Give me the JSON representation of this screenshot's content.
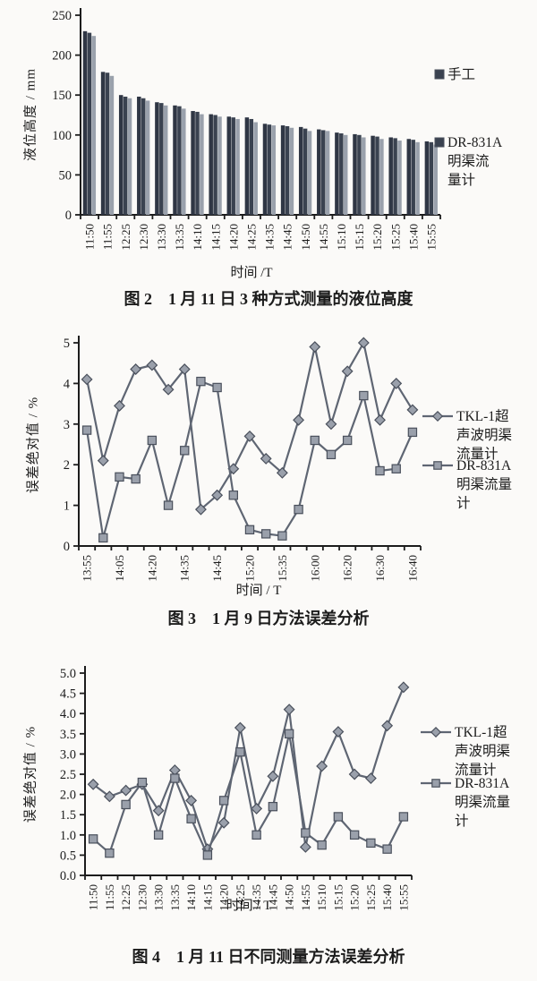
{
  "page": {
    "background": "#fbfaf8",
    "text_color": "#1c1c1c"
  },
  "chart_data": [
    {
      "type": "bar",
      "title": "图 2　1 月 11 日 3 种方式测量的液位高度",
      "xlabel": "时间 /T",
      "ylabel": "液位高度 / mm",
      "ylim": [
        0,
        250
      ],
      "yticks": [
        0,
        50,
        100,
        150,
        200,
        250
      ],
      "ytick_labels": [
        "0",
        "50",
        "100",
        "150",
        "200",
        "250"
      ],
      "grid": false,
      "legend_position": "right",
      "categories": [
        "11:50",
        "11:55",
        "12:25",
        "12:30",
        "13:30",
        "13:35",
        "14:10",
        "14:15",
        "14:20",
        "14:25",
        "14:35",
        "14:45",
        "14:50",
        "14:55",
        "15:10",
        "15:15",
        "15:20",
        "15:25",
        "15:40",
        "15:55"
      ],
      "series": [
        {
          "name": "手工",
          "color": "#2f3644",
          "values": [
            230,
            179,
            150,
            148,
            141,
            137,
            130,
            126,
            123,
            122,
            114,
            112,
            110,
            107,
            103,
            101,
            99,
            97,
            95,
            92
          ]
        },
        {
          "name": "",
          "color": "#3a4250",
          "values": [
            228,
            178,
            148,
            146,
            140,
            136,
            129,
            125,
            122,
            120,
            113,
            111,
            108,
            106,
            102,
            100,
            98,
            96,
            94,
            91
          ]
        },
        {
          "name": "DR-831A明渠流量计",
          "color": "#9aa1ac",
          "values": [
            224,
            174,
            146,
            143,
            137,
            133,
            126,
            123,
            120,
            116,
            112,
            109,
            105,
            105,
            100,
            97,
            95,
            93,
            91,
            88
          ]
        }
      ],
      "legend": [
        {
          "marker": "swatch",
          "color": "#3a4250",
          "lines": [
            "手工"
          ]
        },
        {
          "marker": "swatch",
          "color": "#3a4250",
          "lines": [
            "DR-831A",
            "明渠流",
            "量计"
          ]
        }
      ]
    },
    {
      "type": "line",
      "title": "图 3　1 月 9 日方法误差分析",
      "xlabel": "时间 / T",
      "ylabel": "误差绝对值 / %",
      "ylim": [
        0,
        5
      ],
      "yticks": [
        0,
        1,
        2,
        3,
        4,
        5
      ],
      "ytick_labels": [
        "0",
        "1",
        "2",
        "3",
        "4",
        "5"
      ],
      "grid": false,
      "legend_position": "right",
      "categories": [
        "13:55",
        "",
        "14:05",
        "",
        "14:20",
        "",
        "14:35",
        "",
        "14:45",
        "",
        "15:20",
        "",
        "15:35",
        "",
        "16:00",
        "",
        "16:20",
        "",
        "16:30",
        "",
        "16:40"
      ],
      "series": [
        {
          "name": "TKL-1超声波明渠流量计",
          "marker": "diamond",
          "color": "#5f6673",
          "values": [
            4.1,
            2.1,
            3.45,
            4.35,
            4.45,
            3.85,
            4.35,
            0.9,
            1.25,
            1.9,
            2.7,
            2.15,
            1.8,
            3.1,
            4.9,
            3.0,
            4.3,
            5.0,
            3.1,
            4.0,
            3.35
          ]
        },
        {
          "name": "DR-831A明渠流量计",
          "marker": "square",
          "color": "#5f6673",
          "values": [
            2.85,
            0.2,
            1.7,
            1.65,
            2.6,
            1.0,
            2.35,
            4.05,
            3.9,
            1.25,
            0.4,
            0.3,
            0.25,
            0.9,
            2.6,
            2.25,
            2.6,
            3.7,
            1.85,
            1.9,
            2.8
          ]
        }
      ],
      "legend": [
        {
          "marker": "diamond",
          "color": "#5f6673",
          "lines": [
            "TKL-1超",
            "声波明渠",
            "流量计"
          ]
        },
        {
          "marker": "square",
          "color": "#5f6673",
          "lines": [
            "DR-831A",
            "明渠流量",
            "计"
          ]
        }
      ]
    },
    {
      "type": "line",
      "title": "图 4　1 月 11 日不同测量方法误差分析",
      "xlabel": "时间 / T",
      "ylabel": "误差绝对值 / %",
      "ylim": [
        0,
        5
      ],
      "yticks": [
        0,
        0.5,
        1,
        1.5,
        2,
        2.5,
        3,
        3.5,
        4,
        4.5,
        5
      ],
      "ytick_labels": [
        "0.0",
        "0.5",
        "1.0",
        "1.5",
        "2.0",
        "2.5",
        "3.0",
        "3.5",
        "4.0",
        "4.5",
        "5.0"
      ],
      "grid": false,
      "legend_position": "right",
      "categories": [
        "11:50",
        "11:55",
        "12:25",
        "12:30",
        "13:30",
        "13:35",
        "14:10",
        "14:15",
        "14:20",
        "14:25",
        "14:35",
        "14:45",
        "14:50",
        "14:55",
        "15:10",
        "15:15",
        "15:20",
        "15:25",
        "15:40",
        "15:55"
      ],
      "series": [
        {
          "name": "TKL-1超声波明渠流量计",
          "marker": "diamond",
          "color": "#5f6673",
          "values": [
            2.25,
            1.95,
            2.1,
            2.25,
            1.6,
            2.6,
            1.85,
            0.65,
            1.3,
            3.65,
            1.65,
            2.45,
            4.1,
            0.7,
            2.7,
            3.55,
            2.5,
            2.4,
            3.7,
            4.65
          ]
        },
        {
          "name": "DR-831A明渠流量计",
          "marker": "square",
          "color": "#5f6673",
          "values": [
            0.9,
            0.55,
            1.75,
            2.3,
            1.0,
            2.4,
            1.4,
            0.5,
            1.85,
            3.05,
            1.0,
            1.7,
            3.5,
            1.05,
            0.75,
            1.45,
            1.0,
            0.8,
            0.65,
            1.45
          ]
        }
      ],
      "legend": [
        {
          "marker": "diamond",
          "color": "#5f6673",
          "lines": [
            "TKL-1超",
            "声波明渠",
            "流量计"
          ]
        },
        {
          "marker": "square",
          "color": "#5f6673",
          "lines": [
            "DR-831A",
            "明渠流量",
            "计"
          ]
        }
      ]
    }
  ],
  "colors": {
    "axis": "#1c1c1c",
    "marker_fill": "#9aa0ab",
    "marker_stroke": "#4a505c",
    "bar_dark": "#2f3644",
    "bar_mid": "#3a4250",
    "bar_light": "#9aa1ac"
  }
}
